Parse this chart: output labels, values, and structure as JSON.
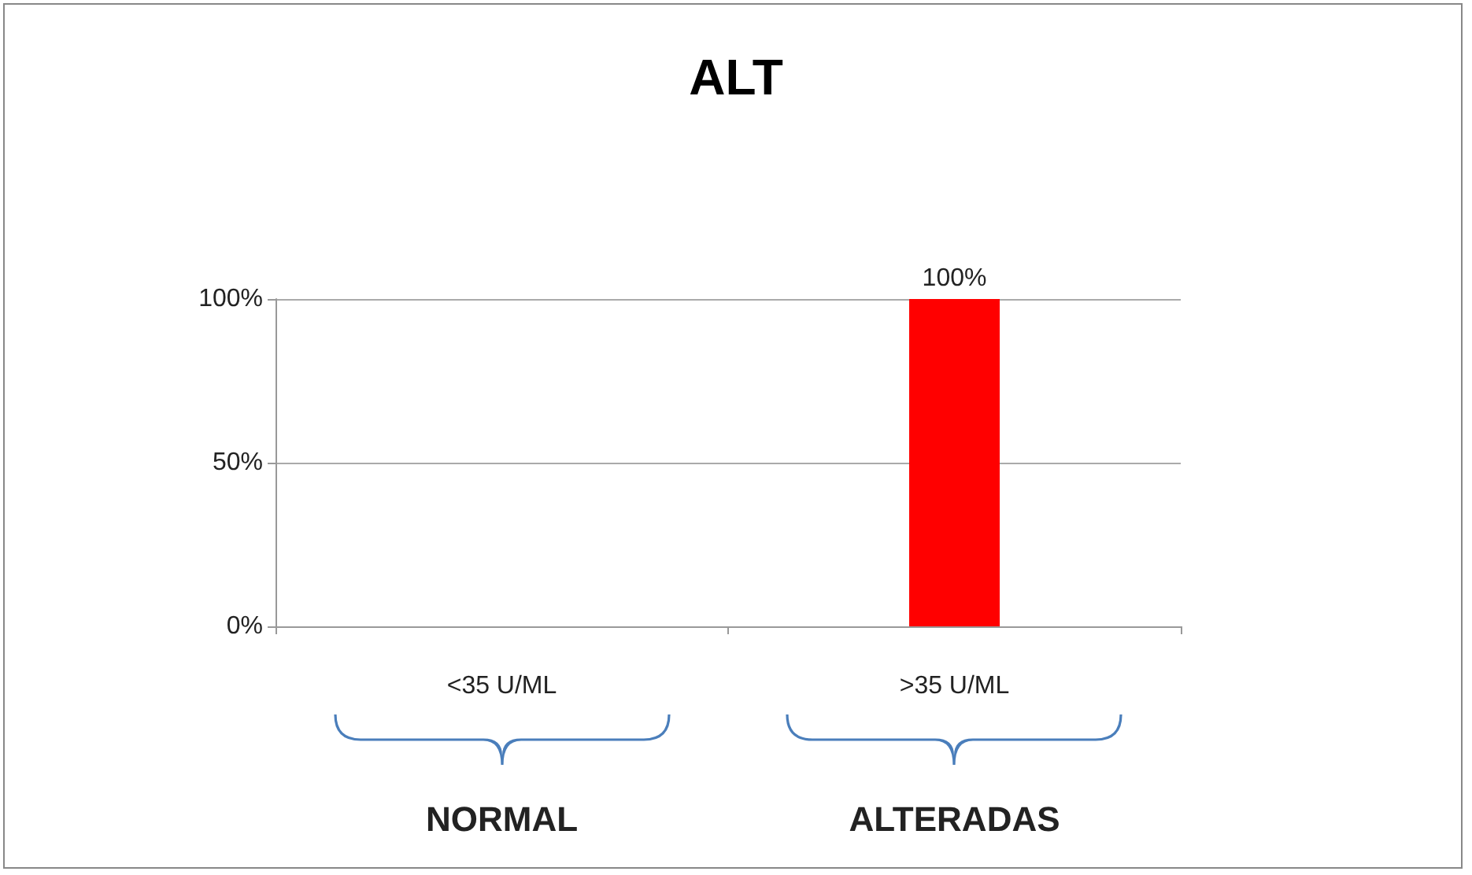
{
  "chart_data": {
    "type": "bar",
    "title": "ALT",
    "categories": [
      "<35 U/ML",
      ">35 U/ML"
    ],
    "values": [
      0,
      100
    ],
    "colors": [
      "#800000",
      "#ff0000"
    ],
    "value_labels": [
      null,
      "100%"
    ],
    "ylim": [
      0,
      100
    ],
    "yticks": [
      {
        "value": 0,
        "label": "0%"
      },
      {
        "value": 50,
        "label": "50%"
      },
      {
        "value": 100,
        "label": "100%"
      }
    ],
    "grid": "y",
    "annotations": [
      "NORMAL",
      "ALTERADAS"
    ]
  }
}
